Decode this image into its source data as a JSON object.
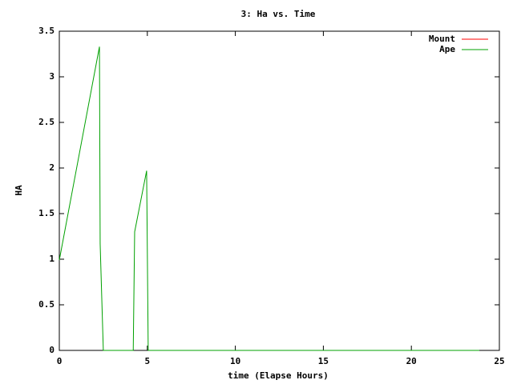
{
  "chart_data": {
    "type": "line",
    "title": "3: Ha vs. Time",
    "x_label": "time (Elapse Hours)",
    "y_label": "HA",
    "series": [
      {
        "name": "Mount",
        "color": "#ff0000",
        "x": [],
        "values": []
      },
      {
        "name": "Ape",
        "color": "#00a000",
        "x": [
          0,
          2.28,
          2.32,
          2.5,
          4.2,
          4.28,
          4.96,
          5.05,
          23.86
        ],
        "values": [
          0.99,
          3.33,
          1.17,
          0,
          0,
          1.3,
          1.97,
          0,
          0
        ]
      }
    ],
    "xlim": [
      0,
      25
    ],
    "xticks": [
      0,
      5,
      10,
      15,
      20,
      25
    ],
    "ylim": [
      0,
      3.5
    ],
    "yticks": [
      0,
      0.5,
      1,
      1.5,
      2,
      2.5,
      3,
      3.5
    ],
    "legend": "top-right",
    "grid": false
  }
}
